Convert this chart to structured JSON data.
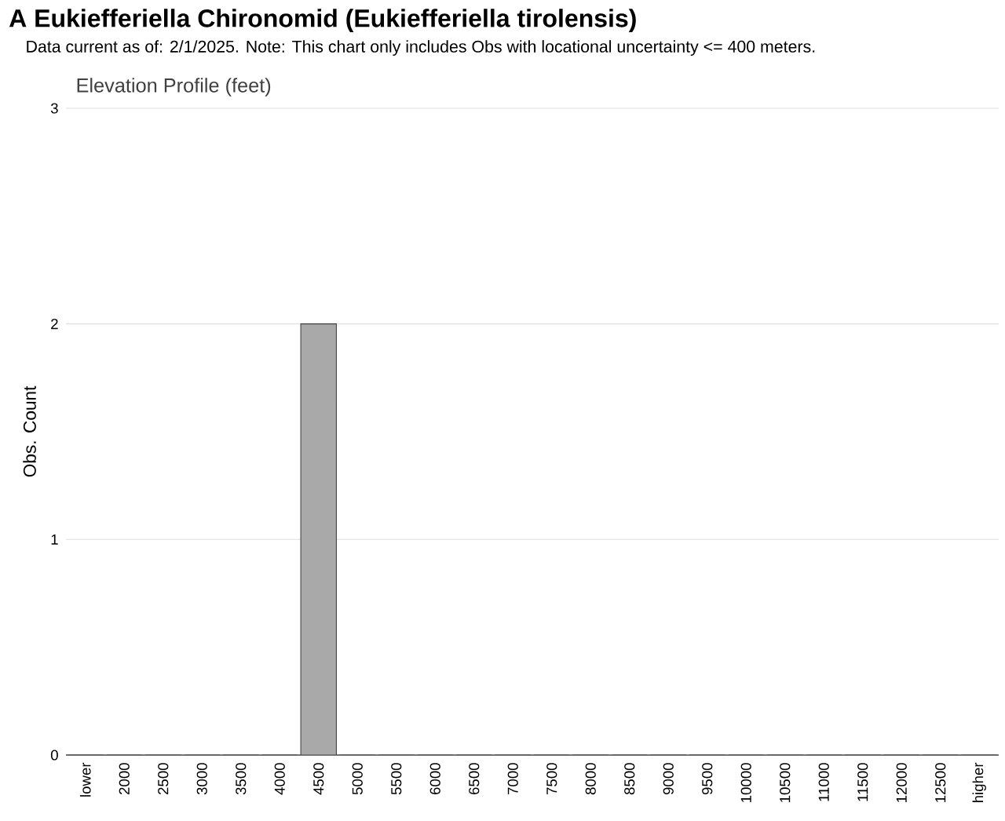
{
  "chart_data": {
    "type": "bar",
    "title": "A Eukiefferiella Chironomid   (Eukiefferiella tirolensis)",
    "subtitle": "Data current as of: 2/1/2025.    Note: This chart only includes Obs with locational uncertainty <= 400 meters.",
    "annotations": [
      "Elevation Profile (feet)"
    ],
    "ylabel": "Obs. Count",
    "categories": [
      "lower",
      "2000",
      "2500",
      "3000",
      "3500",
      "4000",
      "4500",
      "5000",
      "5500",
      "6000",
      "6500",
      "7000",
      "7500",
      "8000",
      "8500",
      "9000",
      "9500",
      "10000",
      "10500",
      "11000",
      "11500",
      "12000",
      "12500",
      "higher"
    ],
    "values": [
      0,
      0,
      0,
      0,
      0,
      0,
      2,
      0,
      0,
      0,
      0,
      0,
      0,
      0,
      0,
      0,
      0,
      0,
      0,
      0,
      0,
      0,
      0,
      0
    ],
    "color": "#a9a9a9",
    "ylim": [
      0,
      3
    ],
    "yticks": [
      0,
      1,
      2,
      3
    ],
    "grid": "y"
  }
}
